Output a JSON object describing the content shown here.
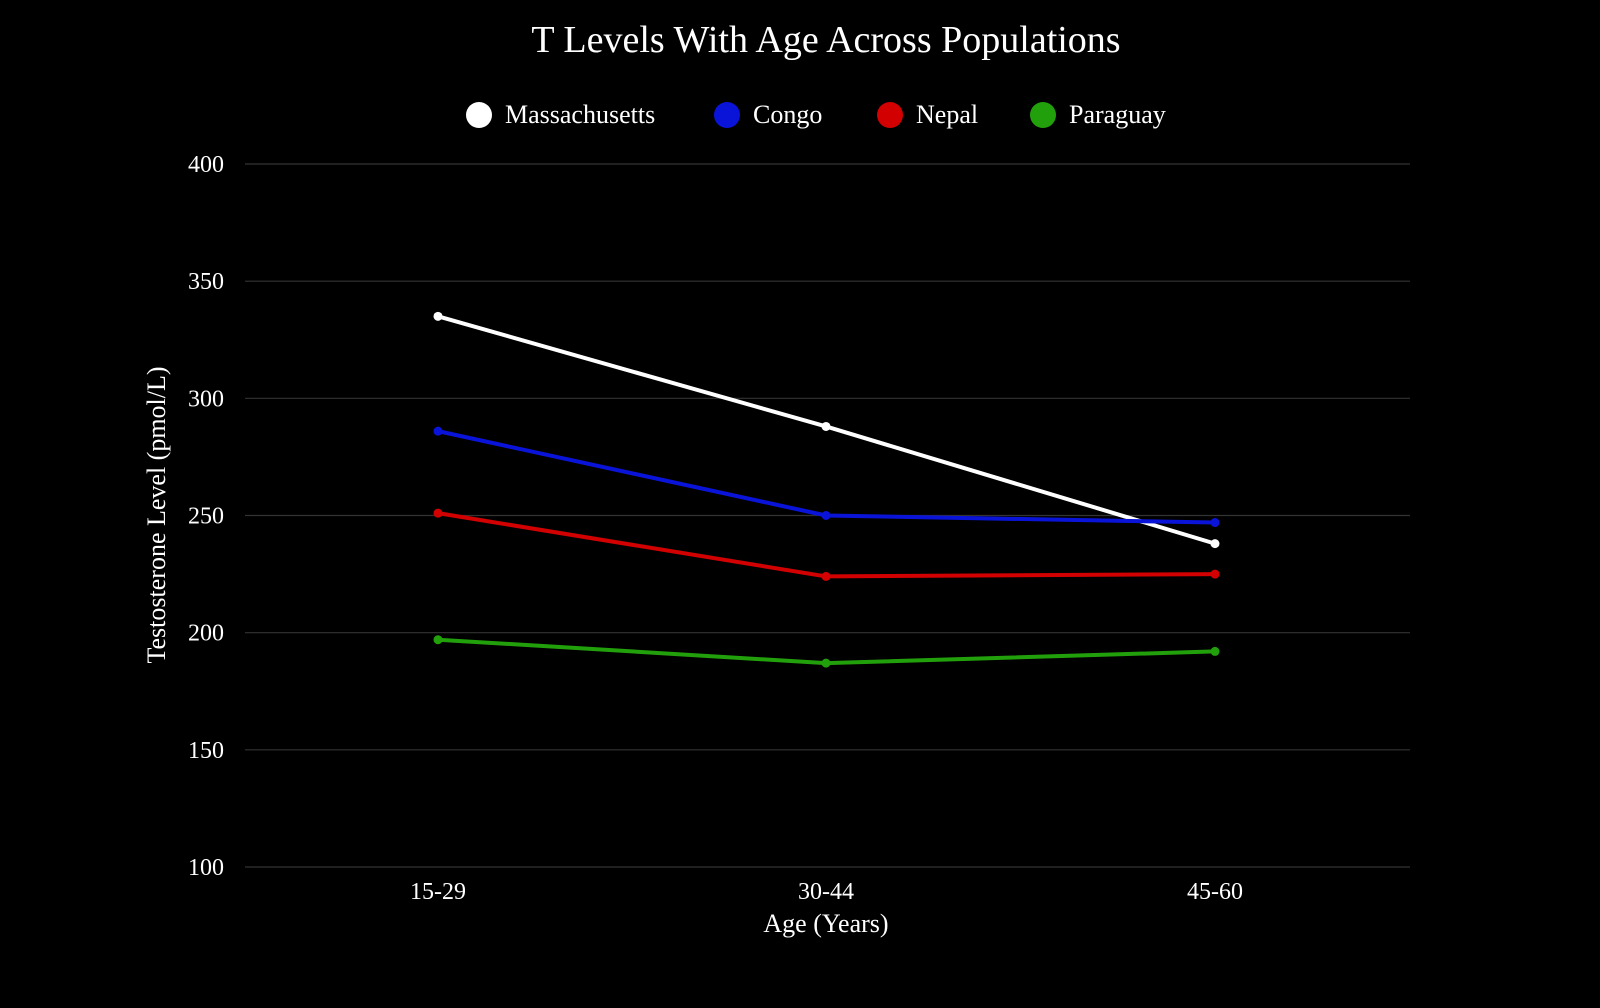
{
  "chart_data": {
    "type": "line",
    "title": "T Levels With Age Across Populations",
    "xlabel": "Age (Years)",
    "ylabel": "Testosterone Level (pmol/L)",
    "categories": [
      "15-29",
      "30-44",
      "45-60"
    ],
    "ylim": [
      100,
      400
    ],
    "yticks": [
      100,
      150,
      200,
      250,
      300,
      350,
      400
    ],
    "grid": true,
    "legend": "top-center",
    "series": [
      {
        "name": "Massachusetts",
        "color": "#ffffff",
        "values": [
          335,
          288,
          238
        ]
      },
      {
        "name": "Congo",
        "color": "#0a14d8",
        "values": [
          286,
          250,
          247
        ]
      },
      {
        "name": "Nepal",
        "color": "#d20000",
        "values": [
          251,
          224,
          225
        ]
      },
      {
        "name": "Paraguay",
        "color": "#22a00c",
        "values": [
          197,
          187,
          192
        ]
      }
    ]
  }
}
